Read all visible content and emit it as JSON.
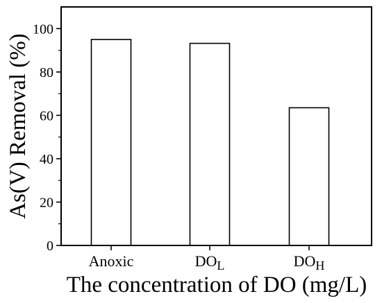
{
  "chart_data": {
    "type": "bar",
    "categories": [
      {
        "base": "Anoxic",
        "sub": ""
      },
      {
        "base": "DO",
        "sub": "L"
      },
      {
        "base": "DO",
        "sub": "H"
      }
    ],
    "values": [
      95,
      93.2,
      63.5
    ],
    "xlabel": "The concentration of DO (mg/L)",
    "ylabel": "As(V) Removal (%)",
    "ylim": [
      0,
      110
    ],
    "yticks": [
      0,
      20,
      40,
      60,
      80,
      100
    ],
    "grid": false,
    "legend": "none",
    "bar_fill": "#ffffff",
    "bar_stroke": "#000000"
  }
}
